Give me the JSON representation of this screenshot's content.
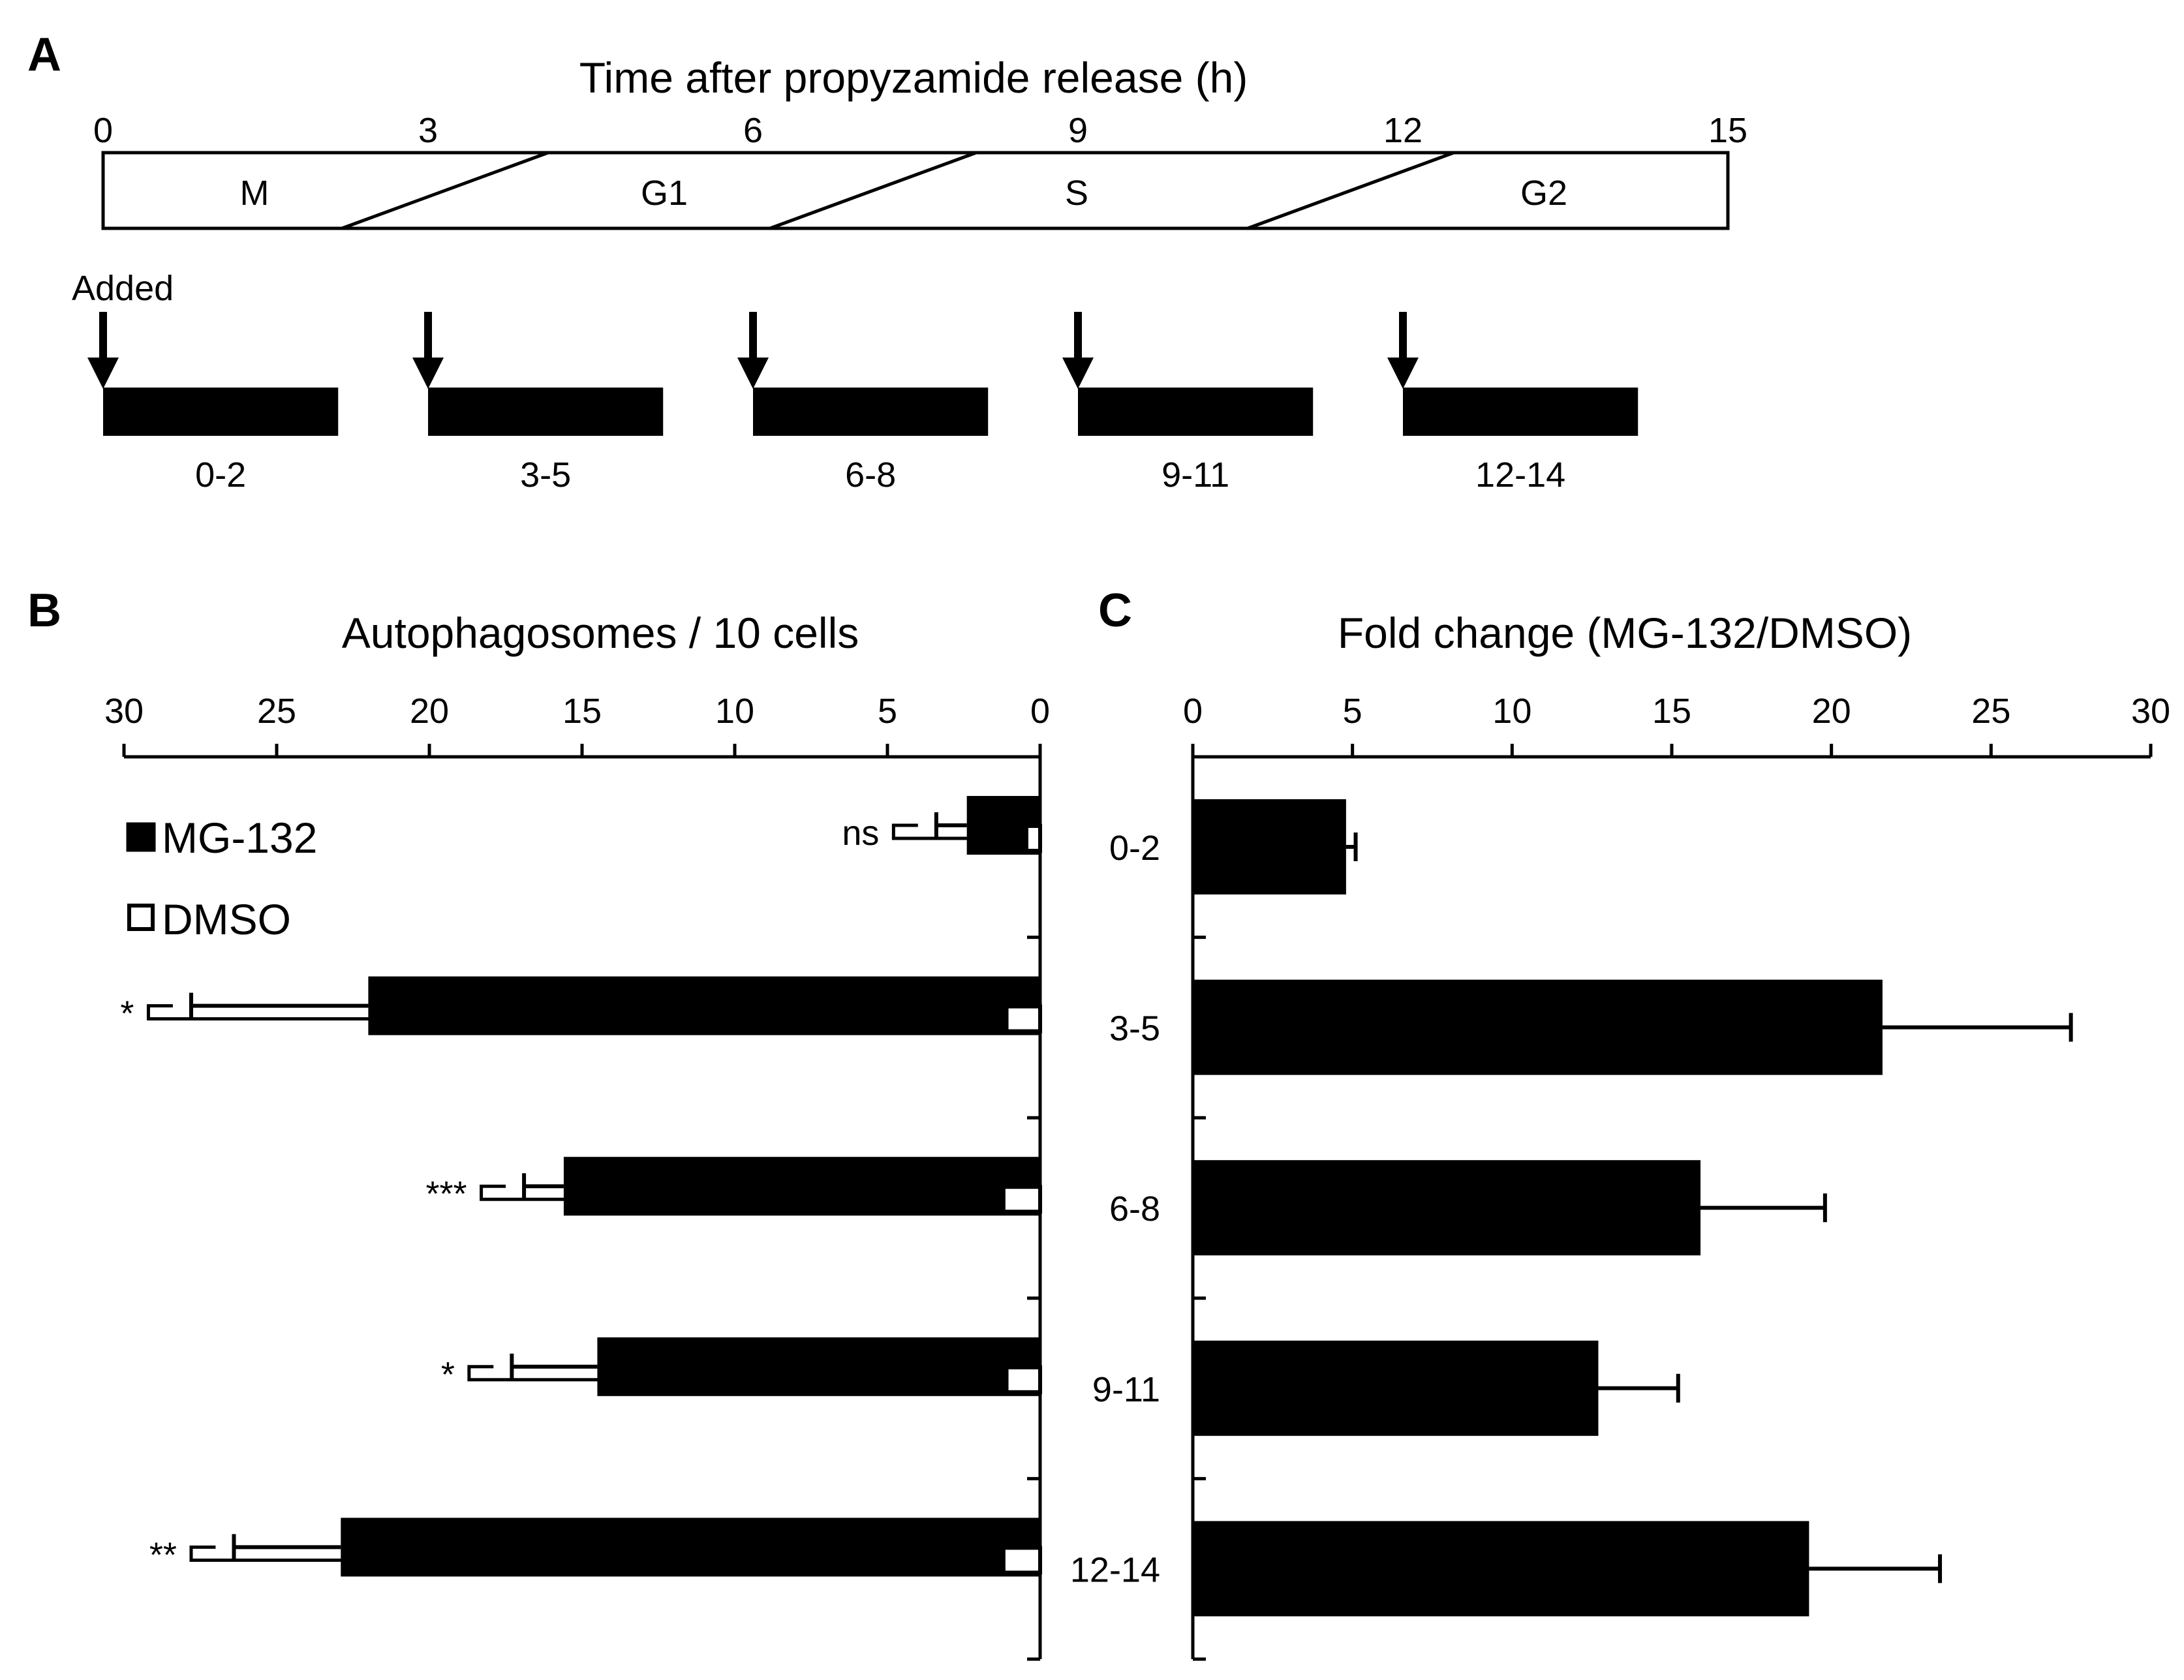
{
  "panel_a": {
    "label": "A",
    "title": "Time after propyzamide release (h)",
    "ticks": [
      0,
      3,
      6,
      9,
      12,
      15
    ],
    "phases": [
      "M",
      "G1",
      "S",
      "G2"
    ],
    "added_label": "Added",
    "windows": [
      {
        "label": "0-2",
        "start": 0,
        "end": 2.17
      },
      {
        "label": "3-5",
        "start": 3,
        "end": 5.17
      },
      {
        "label": "6-8",
        "start": 6,
        "end": 8.17
      },
      {
        "label": "9-11",
        "start": 9,
        "end": 11.17
      },
      {
        "label": "12-14",
        "start": 12,
        "end": 14.17
      }
    ]
  },
  "panel_b": {
    "label": "B"
  },
  "panel_c": {
    "label": "C"
  },
  "chart_data": [
    {
      "type": "bar",
      "orientation": "horizontal",
      "title": "Autophagosomes / 10 cells",
      "xlim": [
        30,
        0
      ],
      "xticks": [
        30,
        25,
        20,
        15,
        10,
        5,
        0
      ],
      "categories": [
        "0-2",
        "3-5",
        "6-8",
        "9-11",
        "12-14"
      ],
      "legend_position": "top-left",
      "series": [
        {
          "name": "MG-132",
          "color": "#000000",
          "values": [
            2.4,
            22.0,
            15.6,
            14.5,
            22.9
          ],
          "errors": [
            1.0,
            5.8,
            1.3,
            2.8,
            3.5
          ]
        },
        {
          "name": "DMSO",
          "color": "#ffffff",
          "values": [
            0.45,
            1.1,
            1.2,
            1.1,
            1.2
          ],
          "errors": [
            0.35,
            0.2,
            0.3,
            0.4,
            0.25
          ]
        }
      ],
      "significance": [
        "ns",
        "*",
        "***",
        "*",
        "**"
      ]
    },
    {
      "type": "bar",
      "orientation": "horizontal",
      "title": "Fold change (MG-132/DMSO)",
      "xlim": [
        0,
        30
      ],
      "xticks": [
        0,
        5,
        10,
        15,
        20,
        25,
        30
      ],
      "categories": [
        "0-2",
        "3-5",
        "6-8",
        "9-11",
        "12-14"
      ],
      "series": [
        {
          "color": "#000000",
          "values": [
            4.8,
            21.6,
            15.9,
            12.7,
            19.3
          ],
          "errors": [
            0.3,
            5.9,
            3.9,
            2.5,
            4.1
          ]
        }
      ]
    }
  ]
}
